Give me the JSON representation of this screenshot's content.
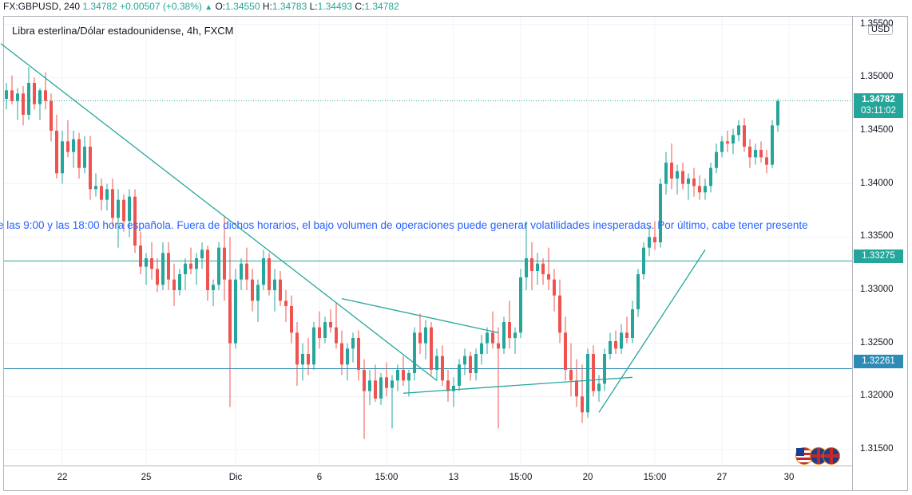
{
  "header": {
    "symbol": "FX:GBPUSD, 240",
    "last": "1.34782",
    "change": "+0.00507 (+0.38%)",
    "o_label": "O:",
    "o": "1.34550",
    "h_label": "H:",
    "h": "1.34783",
    "l_label": "L:",
    "l": "1.34493",
    "c_label": "C:",
    "c": "1.34782"
  },
  "legend": "Libra esterlina/Dólar estadounidense, 4h, FXCM",
  "ticker_text": "e las 9:00 y las 18:00 hora española. Fuera de dichos horarios, el bajo volumen de operaciones puede generar volatilidades inesperadas. Por último, cabe tener presente",
  "currency_button": "USD",
  "price_tags": {
    "last_price": "1.34782",
    "countdown": "03:11:02",
    "level_upper": "1.33275",
    "level_lower": "1.32261"
  },
  "colors": {
    "up": "#26a69a",
    "down": "#ef5350",
    "trendline": "#26a69a",
    "horizontal_line": "#2e8bb5",
    "text_banner": "#2962ff"
  },
  "icons": [
    "us-flag-icon",
    "uk-flag-icon",
    "uk-flag-icon"
  ],
  "chart_data": {
    "type": "candlestick",
    "title": "Libra esterlina/Dólar estadounidense, 4h, FXCM",
    "y_ticks": [
      "1.35500",
      "1.35000",
      "1.34500",
      "1.34000",
      "1.33500",
      "1.33000",
      "1.32500",
      "1.32000",
      "1.31500"
    ],
    "ylim": [
      1.3135,
      1.3558
    ],
    "x_tick_labels": [
      {
        "label": "22",
        "bar": 10
      },
      {
        "label": "25",
        "bar": 25
      },
      {
        "label": "Dic",
        "bar": 41
      },
      {
        "label": "6",
        "bar": 56
      },
      {
        "label": "15:00",
        "bar": 68
      },
      {
        "label": "13",
        "bar": 80
      },
      {
        "label": "15:00",
        "bar": 92
      },
      {
        "label": "20",
        "bar": 104
      },
      {
        "label": "15:00",
        "bar": 116
      },
      {
        "label": "27",
        "bar": 128
      },
      {
        "label": "30",
        "bar": 140
      }
    ],
    "ohlc": [
      [
        1.348,
        1.3495,
        1.347,
        1.3488
      ],
      [
        1.3488,
        1.3502,
        1.3475,
        1.3478
      ],
      [
        1.3478,
        1.349,
        1.346,
        1.3485
      ],
      [
        1.3485,
        1.3492,
        1.3455,
        1.3465
      ],
      [
        1.3465,
        1.351,
        1.346,
        1.3495
      ],
      [
        1.3495,
        1.35,
        1.347,
        1.3475
      ],
      [
        1.3475,
        1.349,
        1.346,
        1.3488
      ],
      [
        1.3488,
        1.3505,
        1.347,
        1.3478
      ],
      [
        1.3478,
        1.3485,
        1.344,
        1.345
      ],
      [
        1.345,
        1.3465,
        1.3405,
        1.341
      ],
      [
        1.341,
        1.345,
        1.34,
        1.344
      ],
      [
        1.344,
        1.346,
        1.3425,
        1.343
      ],
      [
        1.343,
        1.345,
        1.3415,
        1.3442
      ],
      [
        1.3442,
        1.3448,
        1.3405,
        1.3415
      ],
      [
        1.3415,
        1.3445,
        1.341,
        1.3435
      ],
      [
        1.3435,
        1.3445,
        1.3385,
        1.3395
      ],
      [
        1.3395,
        1.341,
        1.3388,
        1.3398
      ],
      [
        1.3398,
        1.3405,
        1.3375,
        1.3385
      ],
      [
        1.3385,
        1.34,
        1.3375,
        1.3395
      ],
      [
        1.3395,
        1.3405,
        1.336,
        1.3368
      ],
      [
        1.3368,
        1.3395,
        1.334,
        1.3385
      ],
      [
        1.3385,
        1.339,
        1.3355,
        1.3365
      ],
      [
        1.3365,
        1.3395,
        1.335,
        1.3388
      ],
      [
        1.3388,
        1.3395,
        1.3335,
        1.3342
      ],
      [
        1.3342,
        1.3355,
        1.3315,
        1.3322
      ],
      [
        1.3322,
        1.3335,
        1.3305,
        1.333
      ],
      [
        1.333,
        1.3345,
        1.331,
        1.332
      ],
      [
        1.332,
        1.333,
        1.3298,
        1.3305
      ],
      [
        1.3305,
        1.3345,
        1.33,
        1.3335
      ],
      [
        1.3335,
        1.3345,
        1.33,
        1.331
      ],
      [
        1.331,
        1.3325,
        1.3285,
        1.33
      ],
      [
        1.33,
        1.332,
        1.3295,
        1.3315
      ],
      [
        1.3315,
        1.333,
        1.33,
        1.3325
      ],
      [
        1.3325,
        1.334,
        1.3315,
        1.332
      ],
      [
        1.332,
        1.3335,
        1.3305,
        1.333
      ],
      [
        1.333,
        1.3345,
        1.332,
        1.3338
      ],
      [
        1.3338,
        1.3342,
        1.329,
        1.33
      ],
      [
        1.33,
        1.331,
        1.3285,
        1.3305
      ],
      [
        1.3305,
        1.3345,
        1.33,
        1.334
      ],
      [
        1.334,
        1.337,
        1.329,
        1.331
      ],
      [
        1.331,
        1.335,
        1.319,
        1.325
      ],
      [
        1.325,
        1.332,
        1.3245,
        1.331
      ],
      [
        1.331,
        1.333,
        1.33,
        1.3325
      ],
      [
        1.3325,
        1.334,
        1.33,
        1.331
      ],
      [
        1.331,
        1.332,
        1.328,
        1.329
      ],
      [
        1.329,
        1.331,
        1.327,
        1.3305
      ],
      [
        1.3305,
        1.3338,
        1.33,
        1.333
      ],
      [
        1.333,
        1.3335,
        1.3295,
        1.33
      ],
      [
        1.33,
        1.332,
        1.328,
        1.331
      ],
      [
        1.331,
        1.3318,
        1.3285,
        1.329
      ],
      [
        1.329,
        1.33,
        1.327,
        1.3285
      ],
      [
        1.3285,
        1.3295,
        1.325,
        1.326
      ],
      [
        1.326,
        1.327,
        1.321,
        1.323
      ],
      [
        1.323,
        1.325,
        1.3215,
        1.324
      ],
      [
        1.324,
        1.3255,
        1.322,
        1.323
      ],
      [
        1.323,
        1.327,
        1.3225,
        1.3265
      ],
      [
        1.3265,
        1.328,
        1.3245,
        1.3255
      ],
      [
        1.3255,
        1.3275,
        1.325,
        1.327
      ],
      [
        1.327,
        1.3282,
        1.326,
        1.3265
      ],
      [
        1.3265,
        1.3288,
        1.3245,
        1.325
      ],
      [
        1.325,
        1.3262,
        1.322,
        1.323
      ],
      [
        1.323,
        1.325,
        1.3215,
        1.3245
      ],
      [
        1.3245,
        1.326,
        1.3232,
        1.3255
      ],
      [
        1.3255,
        1.3262,
        1.3215,
        1.3225
      ],
      [
        1.3225,
        1.3235,
        1.316,
        1.3205
      ],
      [
        1.3205,
        1.3225,
        1.3192,
        1.3215
      ],
      [
        1.3215,
        1.323,
        1.3195,
        1.3198
      ],
      [
        1.3198,
        1.3222,
        1.3192,
        1.3218
      ],
      [
        1.3218,
        1.3232,
        1.32,
        1.3208
      ],
      [
        1.3208,
        1.322,
        1.317,
        1.3215
      ],
      [
        1.3215,
        1.323,
        1.3205,
        1.3225
      ],
      [
        1.3225,
        1.3238,
        1.321,
        1.3215
      ],
      [
        1.3215,
        1.3225,
        1.32,
        1.3222
      ],
      [
        1.3222,
        1.3265,
        1.3215,
        1.326
      ],
      [
        1.326,
        1.3278,
        1.324,
        1.325
      ],
      [
        1.325,
        1.3272,
        1.3235,
        1.3265
      ],
      [
        1.3265,
        1.327,
        1.322,
        1.3225
      ],
      [
        1.3225,
        1.3245,
        1.3215,
        1.3238
      ],
      [
        1.3238,
        1.3248,
        1.321,
        1.3215
      ],
      [
        1.3215,
        1.3225,
        1.3195,
        1.3205
      ],
      [
        1.3205,
        1.3218,
        1.319,
        1.321
      ],
      [
        1.321,
        1.3235,
        1.3205,
        1.323
      ],
      [
        1.323,
        1.3245,
        1.322,
        1.3238
      ],
      [
        1.3238,
        1.3242,
        1.3215,
        1.3222
      ],
      [
        1.3222,
        1.3245,
        1.3215,
        1.324
      ],
      [
        1.324,
        1.3258,
        1.323,
        1.325
      ],
      [
        1.325,
        1.3265,
        1.324,
        1.326
      ],
      [
        1.326,
        1.328,
        1.3245,
        1.325
      ],
      [
        1.325,
        1.3265,
        1.317,
        1.3245
      ],
      [
        1.3245,
        1.3275,
        1.324,
        1.327
      ],
      [
        1.327,
        1.329,
        1.3245,
        1.3255
      ],
      [
        1.3255,
        1.3265,
        1.324,
        1.326
      ],
      [
        1.326,
        1.332,
        1.3255,
        1.3312
      ],
      [
        1.3312,
        1.3365,
        1.33,
        1.333
      ],
      [
        1.333,
        1.3345,
        1.33,
        1.3318
      ],
      [
        1.3318,
        1.3335,
        1.3305,
        1.3325
      ],
      [
        1.3325,
        1.333,
        1.3305,
        1.3315
      ],
      [
        1.3315,
        1.334,
        1.33,
        1.331
      ],
      [
        1.331,
        1.332,
        1.328,
        1.3295
      ],
      [
        1.3295,
        1.331,
        1.325,
        1.326
      ],
      [
        1.326,
        1.3275,
        1.3215,
        1.3225
      ],
      [
        1.3225,
        1.325,
        1.32,
        1.3215
      ],
      [
        1.3215,
        1.3235,
        1.319,
        1.32
      ],
      [
        1.32,
        1.323,
        1.3175,
        1.3185
      ],
      [
        1.3185,
        1.3245,
        1.318,
        1.324
      ],
      [
        1.324,
        1.3248,
        1.32,
        1.3205
      ],
      [
        1.3205,
        1.322,
        1.3195,
        1.3212
      ],
      [
        1.3212,
        1.3245,
        1.3205,
        1.324
      ],
      [
        1.324,
        1.326,
        1.3235,
        1.3252
      ],
      [
        1.3252,
        1.3262,
        1.324,
        1.3245
      ],
      [
        1.3245,
        1.3268,
        1.324,
        1.326
      ],
      [
        1.326,
        1.3275,
        1.325,
        1.3255
      ],
      [
        1.3255,
        1.329,
        1.325,
        1.3282
      ],
      [
        1.3282,
        1.332,
        1.3275,
        1.3315
      ],
      [
        1.3315,
        1.3345,
        1.331,
        1.334
      ],
      [
        1.334,
        1.336,
        1.3332,
        1.335
      ],
      [
        1.335,
        1.3365,
        1.3338,
        1.3345
      ],
      [
        1.3345,
        1.3405,
        1.334,
        1.34
      ],
      [
        1.34,
        1.343,
        1.339,
        1.342
      ],
      [
        1.342,
        1.3438,
        1.3395,
        1.3405
      ],
      [
        1.3405,
        1.3418,
        1.339,
        1.3412
      ],
      [
        1.3412,
        1.342,
        1.3395,
        1.34
      ],
      [
        1.34,
        1.341,
        1.3385,
        1.3405
      ],
      [
        1.3405,
        1.3415,
        1.3388,
        1.3398
      ],
      [
        1.3398,
        1.3408,
        1.3385,
        1.3392
      ],
      [
        1.3392,
        1.3405,
        1.3385,
        1.3398
      ],
      [
        1.3398,
        1.342,
        1.3392,
        1.3415
      ],
      [
        1.3415,
        1.3438,
        1.341,
        1.343
      ],
      [
        1.343,
        1.3445,
        1.3425,
        1.344
      ],
      [
        1.344,
        1.345,
        1.343,
        1.3438
      ],
      [
        1.3438,
        1.3452,
        1.3428,
        1.3446
      ],
      [
        1.3446,
        1.346,
        1.344,
        1.3455
      ],
      [
        1.3455,
        1.3462,
        1.343,
        1.3435
      ],
      [
        1.3435,
        1.3442,
        1.3415,
        1.3425
      ],
      [
        1.3425,
        1.3438,
        1.3418,
        1.3432
      ],
      [
        1.3432,
        1.344,
        1.342,
        1.3425
      ],
      [
        1.3425,
        1.3432,
        1.341,
        1.3418
      ],
      [
        1.3418,
        1.346,
        1.3415,
        1.3455
      ],
      [
        1.3455,
        1.348,
        1.3449,
        1.3478
      ]
    ],
    "horizontal_levels": [
      1.33275,
      1.32261
    ],
    "last_price": 1.34782,
    "trendlines": [
      {
        "from": {
          "bar": -1,
          "price": 1.3532
        },
        "to": {
          "bar": 77,
          "price": 1.3215
        }
      },
      {
        "from": {
          "bar": 60,
          "price": 1.3292
        },
        "to": {
          "bar": 88,
          "price": 1.326
        }
      },
      {
        "from": {
          "bar": 71,
          "price": 1.3203
        },
        "to": {
          "bar": 112,
          "price": 1.3218
        }
      },
      {
        "from": {
          "bar": 106,
          "price": 1.3185
        },
        "to": {
          "bar": 125,
          "price": 1.3338
        }
      }
    ]
  }
}
